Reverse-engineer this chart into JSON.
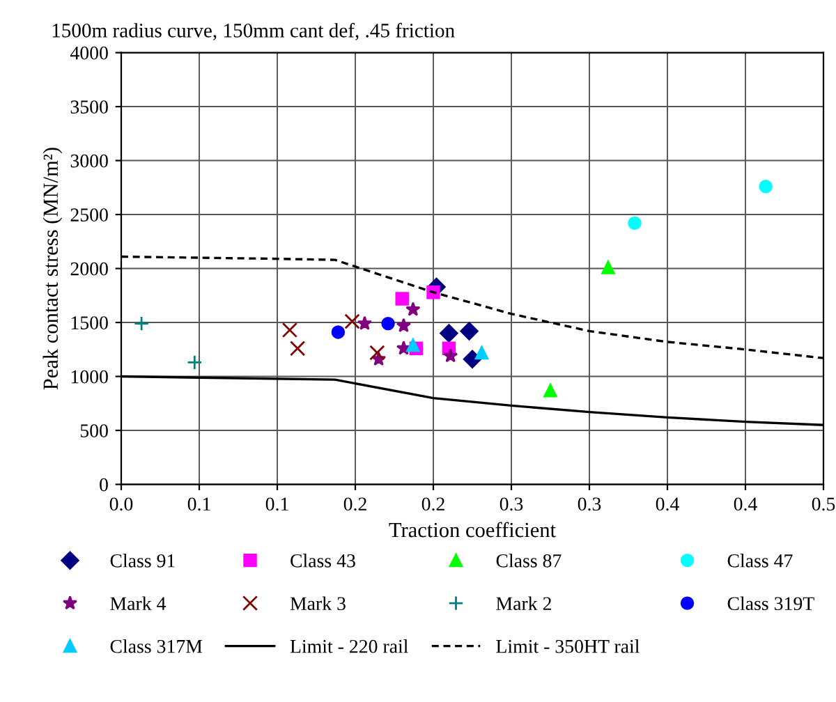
{
  "chart_data": {
    "type": "scatter",
    "title": "1500m radius curve, 150mm cant def, .45 friction",
    "xlabel": "Traction coefficient",
    "ylabel": "Peak contact stress (MN/m²)",
    "xlim": [
      0,
      0.45
    ],
    "ylim": [
      0,
      4000
    ],
    "xticks": [
      {
        "value": 0,
        "label": "0.0"
      },
      {
        "value": 0.05,
        "label": "0.1"
      },
      {
        "value": 0.1,
        "label": "0.1"
      },
      {
        "value": 0.15,
        "label": "0.2"
      },
      {
        "value": 0.2,
        "label": "0.2"
      },
      {
        "value": 0.25,
        "label": "0.3"
      },
      {
        "value": 0.3,
        "label": "0.3"
      },
      {
        "value": 0.35,
        "label": "0.4"
      },
      {
        "value": 0.4,
        "label": "0.4"
      },
      {
        "value": 0.45,
        "label": "0.5"
      }
    ],
    "yticks": [
      0,
      500,
      1000,
      1500,
      2000,
      2500,
      3000,
      3500,
      4000
    ],
    "grid": true,
    "legend": "bottom",
    "series": [
      {
        "name": "Class 91",
        "marker": "diamond",
        "color": "#000080",
        "x": [
          0.202,
          0.21,
          0.223,
          0.225
        ],
        "values": [
          1830,
          1400,
          1420,
          1160
        ]
      },
      {
        "name": "Class 43",
        "marker": "square",
        "color": "#ff00ff",
        "x": [
          0.18,
          0.2,
          0.189,
          0.21
        ],
        "values": [
          1720,
          1780,
          1260,
          1260
        ]
      },
      {
        "name": "Class 87",
        "marker": "triangle",
        "color": "#00ff00",
        "x": [
          0.312,
          0.275
        ],
        "values": [
          2010,
          870
        ]
      },
      {
        "name": "Class 47",
        "marker": "circle",
        "color": "#00ffff",
        "x": [
          0.329,
          0.413
        ],
        "values": [
          2420,
          2760
        ]
      },
      {
        "name": "Mark 4",
        "marker": "star",
        "color": "#800080",
        "x": [
          0.156,
          0.187,
          0.181,
          0.181,
          0.211,
          0.165
        ],
        "values": [
          1490,
          1620,
          1470,
          1260,
          1190,
          1160
        ]
      },
      {
        "name": "Mark 3",
        "marker": "cross",
        "color": "#800000",
        "x": [
          0.108,
          0.113,
          0.148,
          0.164
        ],
        "values": [
          1430,
          1260,
          1510,
          1220
        ]
      },
      {
        "name": "Mark 2",
        "marker": "plus",
        "color": "#008080",
        "x": [
          0.013,
          0.047
        ],
        "values": [
          1490,
          1130
        ]
      },
      {
        "name": "Class 319T",
        "marker": "circle",
        "color": "#0000ff",
        "x": [
          0.139,
          0.171
        ],
        "values": [
          1410,
          1490
        ]
      },
      {
        "name": "Class 317M",
        "marker": "triangle",
        "color": "#00ccff",
        "x": [
          0.231,
          0.187
        ],
        "values": [
          1220,
          1290
        ]
      },
      {
        "name": "Limit - 220 rail",
        "type": "line",
        "line_style": "solid",
        "color": "#000000",
        "x": [
          0,
          0.137,
          0.2,
          0.25,
          0.3,
          0.35,
          0.4,
          0.45
        ],
        "values": [
          1000,
          970,
          800,
          730,
          670,
          620,
          580,
          550
        ]
      },
      {
        "name": "Limit - 350HT rail",
        "type": "line",
        "line_style": "dashed",
        "color": "#000000",
        "x": [
          0,
          0.1,
          0.137,
          0.2,
          0.25,
          0.3,
          0.35,
          0.4,
          0.45
        ],
        "values": [
          2110,
          2090,
          2080,
          1780,
          1580,
          1420,
          1320,
          1250,
          1170
        ]
      }
    ]
  }
}
